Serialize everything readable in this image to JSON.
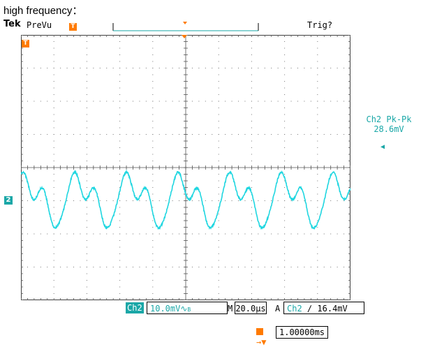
{
  "caption": "high frequency：",
  "header": {
    "brand": "Tek",
    "mode": "PreVu",
    "trigger_state": "Trig?"
  },
  "markers": {
    "trigger_marker": "T",
    "channel_marker": "2"
  },
  "measurement": {
    "label": "Ch2 Pk-Pk",
    "value": "28.6mV"
  },
  "status": {
    "channel": "Ch2",
    "volts_per_div": "10.0mV",
    "bw_symbol": "∿",
    "bw_suffix": "B",
    "timebase_prefix": "M",
    "timebase": "20.0µs",
    "acq_prefix": "A",
    "trigger_source": "Ch2",
    "trigger_slope": "∕",
    "trigger_level": "16.4mV"
  },
  "position": {
    "icon": "T→▼",
    "value": "1.00000ms"
  },
  "colors": {
    "trace": "#1fd6e0",
    "channel": "#1aa7a7",
    "marker": "#ff7a00"
  }
}
